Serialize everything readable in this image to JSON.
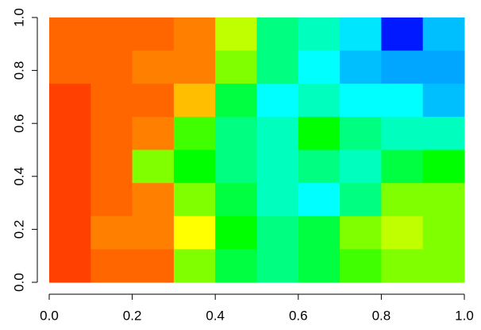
{
  "chart_data": {
    "type": "heatmap",
    "xbins": [
      0,
      0.1,
      0.2,
      0.3,
      0.4,
      0.5,
      0.6,
      0.7,
      0.8,
      0.9,
      1
    ],
    "ybins": [
      1,
      0.875,
      0.75,
      0.625,
      0.5,
      0.375,
      0.25,
      0.125,
      0
    ],
    "z": [
      [
        0.08,
        0.08,
        0.08,
        0.1,
        0.25,
        0.5,
        0.55,
        0.62,
        0.78,
        0.65
      ],
      [
        0.08,
        0.08,
        0.1,
        0.1,
        0.3,
        0.5,
        0.6,
        0.65,
        0.67,
        0.67
      ],
      [
        0.05,
        0.08,
        0.08,
        0.15,
        0.45,
        0.6,
        0.55,
        0.6,
        0.6,
        0.65
      ],
      [
        0.05,
        0.08,
        0.1,
        0.35,
        0.5,
        0.55,
        0.4,
        0.5,
        0.55,
        0.55
      ],
      [
        0.05,
        0.08,
        0.3,
        0.4,
        0.5,
        0.55,
        0.5,
        0.55,
        0.45,
        0.4
      ],
      [
        0.05,
        0.08,
        0.1,
        0.3,
        0.45,
        0.55,
        0.6,
        0.5,
        0.3,
        0.3
      ],
      [
        0.05,
        0.1,
        0.1,
        0.2,
        0.4,
        0.5,
        0.45,
        0.3,
        0.25,
        0.3
      ],
      [
        0.05,
        0.08,
        0.08,
        0.3,
        0.45,
        0.5,
        0.45,
        0.35,
        0.3,
        0.3
      ]
    ],
    "hue_range": [
      0,
      300
    ],
    "xlim": [
      0,
      1
    ],
    "ylim": [
      0,
      1
    ],
    "xticks": [
      {
        "value": 0,
        "label": "0.0"
      },
      0.2,
      0.4,
      0.6,
      0.8,
      {
        "value": 1,
        "label": "1.0"
      }
    ],
    "yticks": [
      {
        "value": 0,
        "label": "0.0"
      },
      0.2,
      0.4,
      0.6,
      0.8,
      {
        "value": 1,
        "label": "1.0"
      }
    ]
  }
}
